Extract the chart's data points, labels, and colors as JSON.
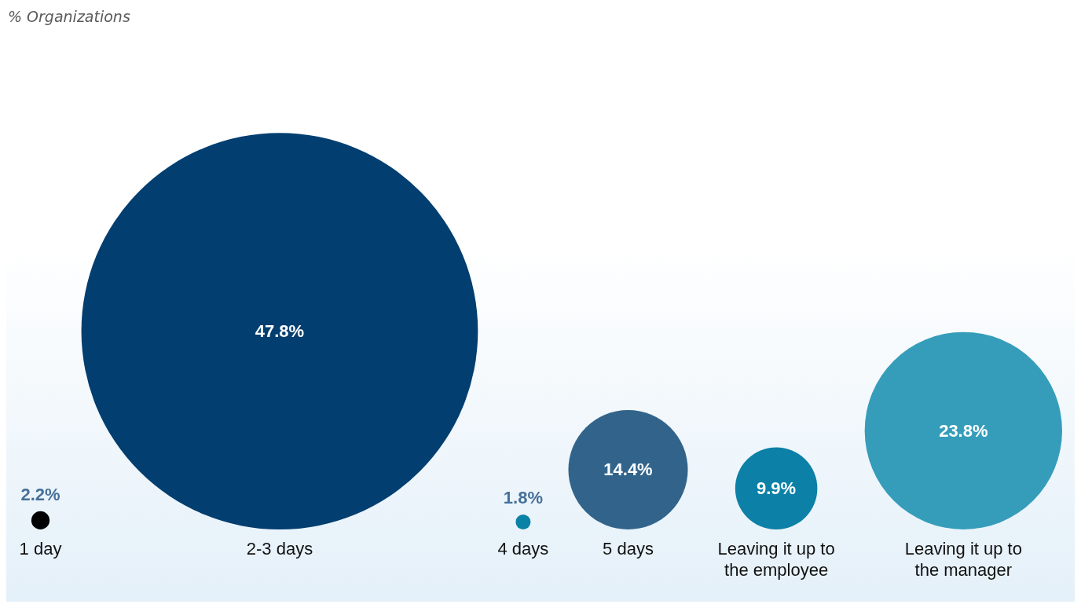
{
  "chart_data": {
    "type": "other",
    "title": "% Organizations",
    "categories": [
      "1 day",
      "2-3 days",
      "4 days",
      "5 days",
      "Leaving it up to the employee",
      "Leaving it up to the manager"
    ],
    "values": [
      2.2,
      47.8,
      1.8,
      14.4,
      9.9,
      23.8
    ],
    "value_labels": [
      "2.2%",
      "47.8%",
      "1.8%",
      "14.4%",
      "9.9%",
      "23.8%"
    ],
    "colors": [
      "#000000",
      "#023e6f",
      "#0a82a5",
      "#32648b",
      "#0c80a6",
      "#359dba"
    ]
  }
}
